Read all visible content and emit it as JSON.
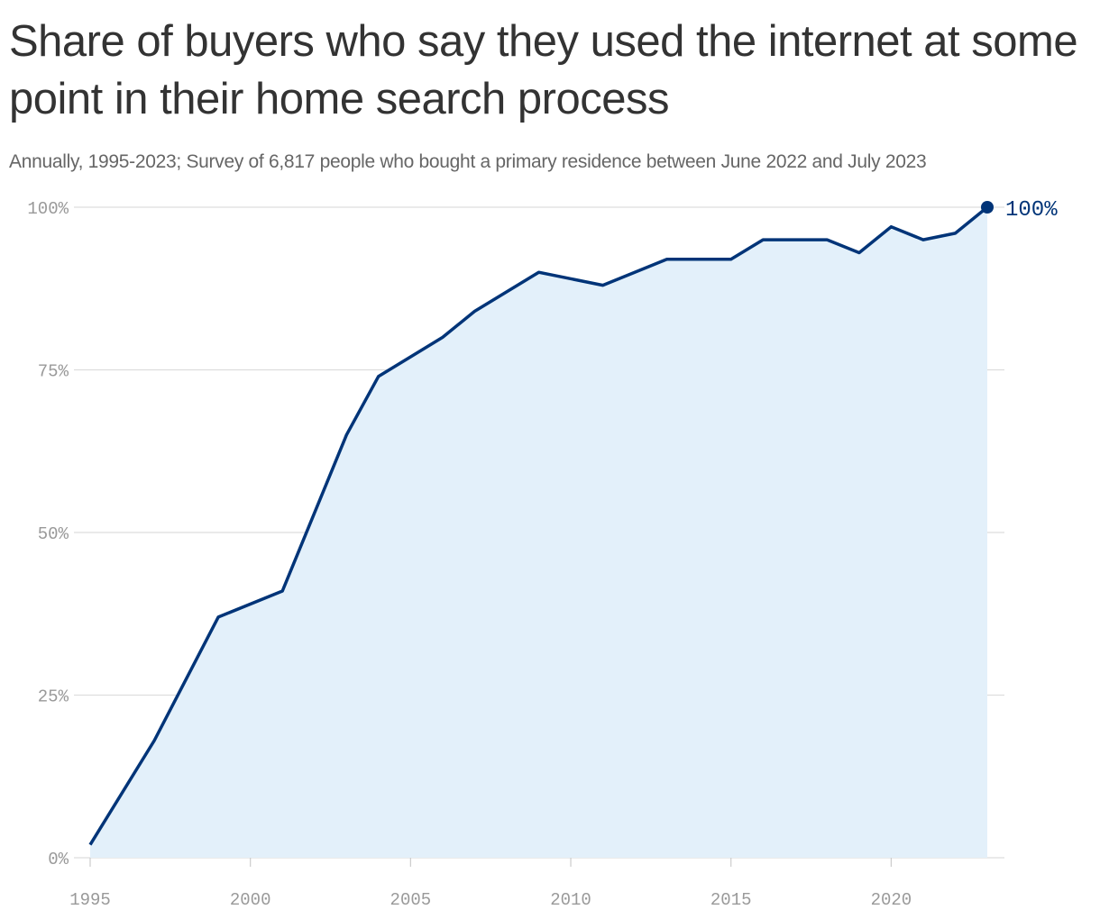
{
  "title": "Share of buyers who say they used the internet at some point in their home search process",
  "subtitle": "Annually, 1995-2023; Survey of 6,817 people who bought a primary residence between June 2022 and July 2023",
  "colors": {
    "line": "#003478",
    "area": "#e3f0fa",
    "grid": "#dddddd",
    "tick": "#999999",
    "title": "#333333",
    "subtitle": "#666666"
  },
  "chart_data": {
    "type": "area",
    "x": [
      1995,
      1997,
      1999,
      2001,
      2003,
      2004,
      2006,
      2007,
      2009,
      2011,
      2013,
      2015,
      2016,
      2018,
      2019,
      2020,
      2021,
      2022,
      2023
    ],
    "series": [
      {
        "values": [
          2,
          18,
          37,
          41,
          65,
          74,
          80,
          84,
          90,
          88,
          92,
          92,
          95,
          95,
          93,
          97,
          95,
          96,
          100
        ]
      }
    ],
    "end_label": "100%",
    "xlim": [
      1995,
      2023
    ],
    "ylim": [
      0,
      100
    ],
    "x_ticks": [
      1995,
      2000,
      2005,
      2010,
      2015,
      2020
    ],
    "x_tick_labels": [
      "1995",
      "2000",
      "2005",
      "2010",
      "2015",
      "2020"
    ],
    "y_ticks": [
      0,
      25,
      50,
      75,
      100
    ],
    "y_tick_labels": [
      "0%",
      "25%",
      "50%",
      "75%",
      "100%"
    ],
    "grid": true,
    "legend": "none"
  }
}
